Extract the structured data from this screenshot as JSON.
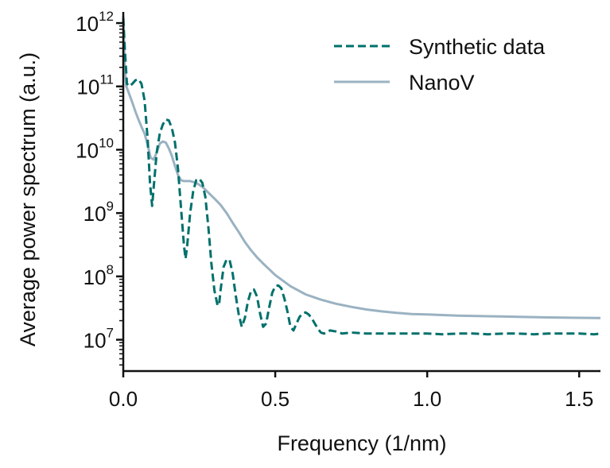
{
  "chart_data": {
    "type": "line",
    "title": "",
    "xlabel": "Frequency (1/nm)",
    "ylabel": "Average power spectrum (a.u.)",
    "xlim": [
      0.0,
      1.57
    ],
    "ylim": [
      3200000.0,
      1500000000000.0
    ],
    "yscale": "log",
    "grid": false,
    "legend_position": "top-right",
    "x_ticks": [
      {
        "value": 0.0,
        "label": "0.0"
      },
      {
        "value": 0.5,
        "label": "0.5"
      },
      {
        "value": 1.0,
        "label": "1.0"
      },
      {
        "value": 1.5,
        "label": "1.5"
      }
    ],
    "y_ticks": [
      {
        "value": 10000000.0,
        "base": "10",
        "exp": "7"
      },
      {
        "value": 100000000.0,
        "base": "10",
        "exp": "8"
      },
      {
        "value": 1000000000.0,
        "base": "10",
        "exp": "9"
      },
      {
        "value": 10000000000.0,
        "base": "10",
        "exp": "10"
      },
      {
        "value": 100000000000.0,
        "base": "10",
        "exp": "11"
      },
      {
        "value": 1000000000000.0,
        "base": "10",
        "exp": "12"
      }
    ],
    "series": [
      {
        "name": "Synthetic data",
        "color": "#00706b",
        "style": "dashed",
        "x": [
          0.0,
          0.005,
          0.012,
          0.02,
          0.03,
          0.04,
          0.05,
          0.06,
          0.07,
          0.08,
          0.088,
          0.095,
          0.1,
          0.11,
          0.12,
          0.13,
          0.14,
          0.15,
          0.16,
          0.17,
          0.18,
          0.19,
          0.2,
          0.205,
          0.21,
          0.22,
          0.23,
          0.24,
          0.25,
          0.26,
          0.27,
          0.28,
          0.29,
          0.3,
          0.31,
          0.315,
          0.32,
          0.33,
          0.34,
          0.35,
          0.36,
          0.37,
          0.38,
          0.39,
          0.4,
          0.41,
          0.42,
          0.43,
          0.44,
          0.45,
          0.46,
          0.47,
          0.48,
          0.49,
          0.5,
          0.51,
          0.52,
          0.53,
          0.54,
          0.55,
          0.56,
          0.57,
          0.58,
          0.59,
          0.6,
          0.61,
          0.62,
          0.63,
          0.64,
          0.65,
          0.66,
          0.67,
          0.68,
          0.7,
          0.72,
          0.75,
          0.8,
          0.85,
          0.9,
          0.95,
          1.0,
          1.05,
          1.1,
          1.15,
          1.2,
          1.25,
          1.3,
          1.35,
          1.4,
          1.45,
          1.5,
          1.55,
          1.57
        ],
        "y": [
          1200000000000.0,
          400000000000.0,
          110000000000.0,
          100000000000.0,
          110000000000.0,
          125000000000.0,
          130000000000.0,
          110000000000.0,
          60000000000.0,
          15000000000.0,
          3000000000.0,
          1300000000.0,
          2500000000.0,
          9000000000.0,
          18000000000.0,
          25000000000.0,
          30000000000.0,
          29000000000.0,
          22000000000.0,
          13000000000.0,
          5000000000.0,
          1200000000.0,
          300000000.0,
          190000000.0,
          300000000.0,
          1000000000.0,
          2200000000.0,
          3300000000.0,
          3500000000.0,
          3000000000.0,
          1800000000.0,
          600000000.0,
          160000000.0,
          60000000.0,
          35000000.0,
          35000000.0,
          60000000.0,
          140000000.0,
          185000000.0,
          180000000.0,
          110000000.0,
          50000000.0,
          25000000.0,
          16000000.0,
          22000000.0,
          40000000.0,
          58000000.0,
          62000000.0,
          48000000.0,
          26000000.0,
          16000000.0,
          18000000.0,
          32000000.0,
          55000000.0,
          70000000.0,
          72000000.0,
          65000000.0,
          45000000.0,
          28000000.0,
          16000000.0,
          14000000.0,
          18000000.0,
          23000000.0,
          26000000.0,
          27000000.0,
          25000000.0,
          22000000.0,
          18000000.0,
          15000000.0,
          13000000.0,
          12500000.0,
          13000000.0,
          14000000.0,
          13500000.0,
          12500000.0,
          13000000.0,
          12500000.0,
          12500000.0,
          12500000.0,
          12500000.0,
          12500000.0,
          12200000.0,
          12500000.0,
          12500000.0,
          12200000.0,
          12500000.0,
          12500000.0,
          12200000.0,
          12500000.0,
          12500000.0,
          12500000.0,
          12200000.0,
          12500000.0
        ]
      },
      {
        "name": "NanoV",
        "color": "#9ab2c2",
        "style": "solid",
        "x": [
          0.0,
          0.005,
          0.01,
          0.02,
          0.03,
          0.04,
          0.05,
          0.06,
          0.07,
          0.08,
          0.09,
          0.1,
          0.11,
          0.12,
          0.13,
          0.14,
          0.15,
          0.16,
          0.17,
          0.18,
          0.19,
          0.2,
          0.22,
          0.24,
          0.26,
          0.28,
          0.3,
          0.32,
          0.34,
          0.36,
          0.38,
          0.4,
          0.42,
          0.44,
          0.46,
          0.48,
          0.5,
          0.55,
          0.6,
          0.65,
          0.7,
          0.75,
          0.8,
          0.85,
          0.9,
          0.95,
          1.0,
          1.1,
          1.2,
          1.3,
          1.4,
          1.5,
          1.57
        ],
        "y": [
          1300000000000.0,
          200000000000.0,
          100000000000.0,
          75000000000.0,
          55000000000.0,
          40000000000.0,
          30000000000.0,
          23000000000.0,
          18000000000.0,
          12000000000.0,
          7500000000.0,
          7000000000.0,
          9000000000.0,
          12500000000.0,
          13500000000.0,
          13000000000.0,
          10500000000.0,
          8000000000.0,
          5500000000.0,
          4000000000.0,
          3300000000.0,
          3200000000.0,
          3200000000.0,
          3000000000.0,
          2600000000.0,
          2100000000.0,
          1700000000.0,
          1350000000.0,
          1000000000.0,
          700000000.0,
          500000000.0,
          350000000.0,
          260000000.0,
          200000000.0,
          160000000.0,
          130000000.0,
          105000000.0,
          70000000.0,
          52000000.0,
          43000000.0,
          37000000.0,
          33000000.0,
          30000000.0,
          28000000.0,
          26500000.0,
          25500000.0,
          25000000.0,
          24000000.0,
          23500000.0,
          23000000.0,
          22500000.0,
          22200000.0,
          22000000.0
        ]
      }
    ]
  }
}
